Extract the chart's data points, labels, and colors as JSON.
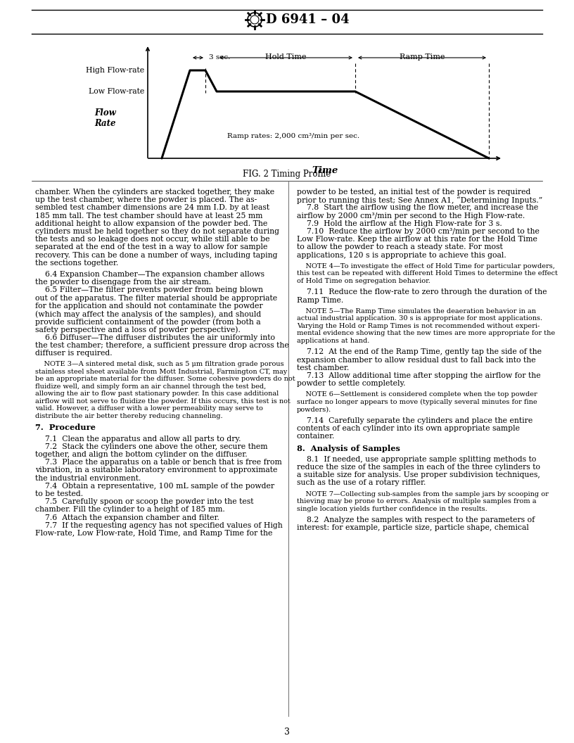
{
  "page_width": 8.16,
  "page_height": 10.56,
  "dpi": 100,
  "bg_color": "#ffffff",
  "header_title": "D 6941 – 04",
  "fig_caption": "FIG. 2 Timing Profile",
  "time_label": "Time",
  "flow_rate_label": "Flow\nRate",
  "high_flow_label": "High Flow-rate",
  "low_flow_label": "Low Flow-rate",
  "ramp_label": "Ramp rates: 2,000 cm³/min per sec.",
  "three_sec_label": "3 sec.",
  "hold_time_label": "Hold Time",
  "ramp_time_label": "Ramp Time",
  "left_col_text": [
    {
      "text": "chamber. When the cylinders are stacked together, they make",
      "style": "normal"
    },
    {
      "text": "up the test chamber, where the powder is placed. The as-",
      "style": "normal"
    },
    {
      "text": "sembled test chamber dimensions are 24 mm I.D. by at least",
      "style": "normal"
    },
    {
      "text": "185 mm tall. The test chamber should have at least 25 mm",
      "style": "normal"
    },
    {
      "text": "additional height to allow expansion of the powder bed. The",
      "style": "normal"
    },
    {
      "text": "cylinders must be held together so they do not separate during",
      "style": "normal"
    },
    {
      "text": "the tests and so leakage does not occur, while still able to be",
      "style": "normal"
    },
    {
      "text": "separated at the end of the test in a way to allow for sample",
      "style": "normal"
    },
    {
      "text": "recovery. This can be done a number of ways, including taping",
      "style": "normal"
    },
    {
      "text": "the sections together.",
      "style": "normal"
    },
    {
      "text": "",
      "style": "normal"
    },
    {
      "text": "    6.4 Expansion Chamber—The expansion chamber allows",
      "style": "normal"
    },
    {
      "text": "the powder to disengage from the air stream.",
      "style": "normal"
    },
    {
      "text": "    6.5 Filter—The filter prevents powder from being blown",
      "style": "normal"
    },
    {
      "text": "out of the apparatus. The filter material should be appropriate",
      "style": "normal"
    },
    {
      "text": "for the application and should not contaminate the powder",
      "style": "normal"
    },
    {
      "text": "(which may affect the analysis of the samples), and should",
      "style": "normal"
    },
    {
      "text": "provide sufficient containment of the powder (from both a",
      "style": "normal"
    },
    {
      "text": "safety perspective and a loss of powder perspective).",
      "style": "normal"
    },
    {
      "text": "    6.6 Diffuser—The diffuser distributes the air uniformly into",
      "style": "normal"
    },
    {
      "text": "the test chamber; therefore, a sufficient pressure drop across the",
      "style": "normal"
    },
    {
      "text": "diffuser is required.",
      "style": "normal"
    },
    {
      "text": "",
      "style": "normal"
    },
    {
      "text": "    NOTE 3—A sintered metal disk, such as 5 μm filtration grade porous",
      "style": "note"
    },
    {
      "text": "stainless steel sheet available from Mott Industrial, Farmington CT, may",
      "style": "note"
    },
    {
      "text": "be an appropriate material for the diffuser. Some cohesive powders do not",
      "style": "note"
    },
    {
      "text": "fluidize well, and simply form an air channel through the test bed,",
      "style": "note"
    },
    {
      "text": "allowing the air to flow past stationary powder. In this case additional",
      "style": "note"
    },
    {
      "text": "airflow will not serve to fluidize the powder. If this occurs, this test is not",
      "style": "note"
    },
    {
      "text": "valid. However, a diffuser with a lower permeability may serve to",
      "style": "note"
    },
    {
      "text": "distribute the air better thereby reducing channeling.",
      "style": "note"
    },
    {
      "text": "",
      "style": "normal"
    },
    {
      "text": "7.  Procedure",
      "style": "section"
    },
    {
      "text": "",
      "style": "normal"
    },
    {
      "text": "    7.1  Clean the apparatus and allow all parts to dry.",
      "style": "normal"
    },
    {
      "text": "    7.2  Stack the cylinders one above the other, secure them",
      "style": "normal"
    },
    {
      "text": "together, and align the bottom cylinder on the diffuser.",
      "style": "normal"
    },
    {
      "text": "    7.3  Place the apparatus on a table or bench that is free from",
      "style": "normal"
    },
    {
      "text": "vibration, in a suitable laboratory environment to approximate",
      "style": "normal"
    },
    {
      "text": "the industrial environment.",
      "style": "normal"
    },
    {
      "text": "    7.4  Obtain a representative, 100 mL sample of the powder",
      "style": "normal"
    },
    {
      "text": "to be tested.",
      "style": "normal"
    },
    {
      "text": "    7.5  Carefully spoon or scoop the powder into the test",
      "style": "normal"
    },
    {
      "text": "chamber. Fill the cylinder to a height of 185 mm.",
      "style": "normal"
    },
    {
      "text": "    7.6  Attach the expansion chamber and filter.",
      "style": "normal"
    },
    {
      "text": "    7.7  If the requesting agency has not specified values of High",
      "style": "normal"
    },
    {
      "text": "Flow-rate, Low Flow-rate, Hold Time, and Ramp Time for the",
      "style": "normal"
    }
  ],
  "right_col_text": [
    {
      "text": "powder to be tested, an initial test of the powder is required",
      "style": "normal"
    },
    {
      "text": "prior to running this test; See Annex A1, “Determining Inputs.”",
      "style": "normal"
    },
    {
      "text": "    7.8  Start the airflow using the flow meter, and increase the",
      "style": "normal"
    },
    {
      "text": "airflow by 2000 cm³/min per second to the High Flow-rate.",
      "style": "normal"
    },
    {
      "text": "    7.9  Hold the airflow at the High Flow-rate for 3 s.",
      "style": "normal"
    },
    {
      "text": "    7.10  Reduce the airflow by 2000 cm³/min per second to the",
      "style": "normal"
    },
    {
      "text": "Low Flow-rate. Keep the airflow at this rate for the Hold Time",
      "style": "normal"
    },
    {
      "text": "to allow the powder to reach a steady state. For most",
      "style": "normal"
    },
    {
      "text": "applications, 120 s is appropriate to achieve this goal.",
      "style": "normal"
    },
    {
      "text": "",
      "style": "normal"
    },
    {
      "text": "    NOTE 4—To investigate the effect of Hold Time for particular powders,",
      "style": "note"
    },
    {
      "text": "this test can be repeated with different Hold Times to determine the effect",
      "style": "note"
    },
    {
      "text": "of Hold Time on segregation behavior.",
      "style": "note"
    },
    {
      "text": "",
      "style": "normal"
    },
    {
      "text": "    7.11  Reduce the flow-rate to zero through the duration of the",
      "style": "normal"
    },
    {
      "text": "Ramp Time.",
      "style": "normal"
    },
    {
      "text": "",
      "style": "normal"
    },
    {
      "text": "    NOTE 5—The Ramp Time simulates the deaeration behavior in an",
      "style": "note"
    },
    {
      "text": "actual industrial application. 30 s is appropriate for most applications.",
      "style": "note"
    },
    {
      "text": "Varying the Hold or Ramp Times is not recommended without experi-",
      "style": "note"
    },
    {
      "text": "mental evidence showing that the new times are more appropriate for the",
      "style": "note"
    },
    {
      "text": "applications at hand.",
      "style": "note"
    },
    {
      "text": "",
      "style": "normal"
    },
    {
      "text": "    7.12  At the end of the Ramp Time, gently tap the side of the",
      "style": "normal"
    },
    {
      "text": "expansion chamber to allow residual dust to fall back into the",
      "style": "normal"
    },
    {
      "text": "test chamber.",
      "style": "normal"
    },
    {
      "text": "    7.13  Allow additional time after stopping the airflow for the",
      "style": "normal"
    },
    {
      "text": "powder to settle completely.",
      "style": "normal"
    },
    {
      "text": "",
      "style": "normal"
    },
    {
      "text": "    NOTE 6—Settlement is considered complete when the top powder",
      "style": "note"
    },
    {
      "text": "surface no longer appears to move (typically several minutes for fine",
      "style": "note"
    },
    {
      "text": "powders).",
      "style": "note"
    },
    {
      "text": "",
      "style": "normal"
    },
    {
      "text": "    7.14  Carefully separate the cylinders and place the entire",
      "style": "normal"
    },
    {
      "text": "contents of each cylinder into its own appropriate sample",
      "style": "normal"
    },
    {
      "text": "container.",
      "style": "normal"
    },
    {
      "text": "",
      "style": "normal"
    },
    {
      "text": "8.  Analysis of Samples",
      "style": "section"
    },
    {
      "text": "",
      "style": "normal"
    },
    {
      "text": "    8.1  If needed, use appropriate sample splitting methods to",
      "style": "normal"
    },
    {
      "text": "reduce the size of the samples in each of the three cylinders to",
      "style": "normal"
    },
    {
      "text": "a suitable size for analysis. Use proper subdivision techniques,",
      "style": "normal"
    },
    {
      "text": "such as the use of a rotary riffler.",
      "style": "normal"
    },
    {
      "text": "",
      "style": "normal"
    },
    {
      "text": "    NOTE 7—Collecting sub-samples from the sample jars by scooping or",
      "style": "note"
    },
    {
      "text": "thieving may be prone to errors. Analysis of multiple samples from a",
      "style": "note"
    },
    {
      "text": "single location yields further confidence in the results.",
      "style": "note"
    },
    {
      "text": "",
      "style": "normal"
    },
    {
      "text": "    8.2  Analyze the samples with respect to the parameters of",
      "style": "normal"
    },
    {
      "text": "interest: for example, particle size, particle shape, chemical",
      "style": "normal"
    }
  ],
  "page_number": "3"
}
